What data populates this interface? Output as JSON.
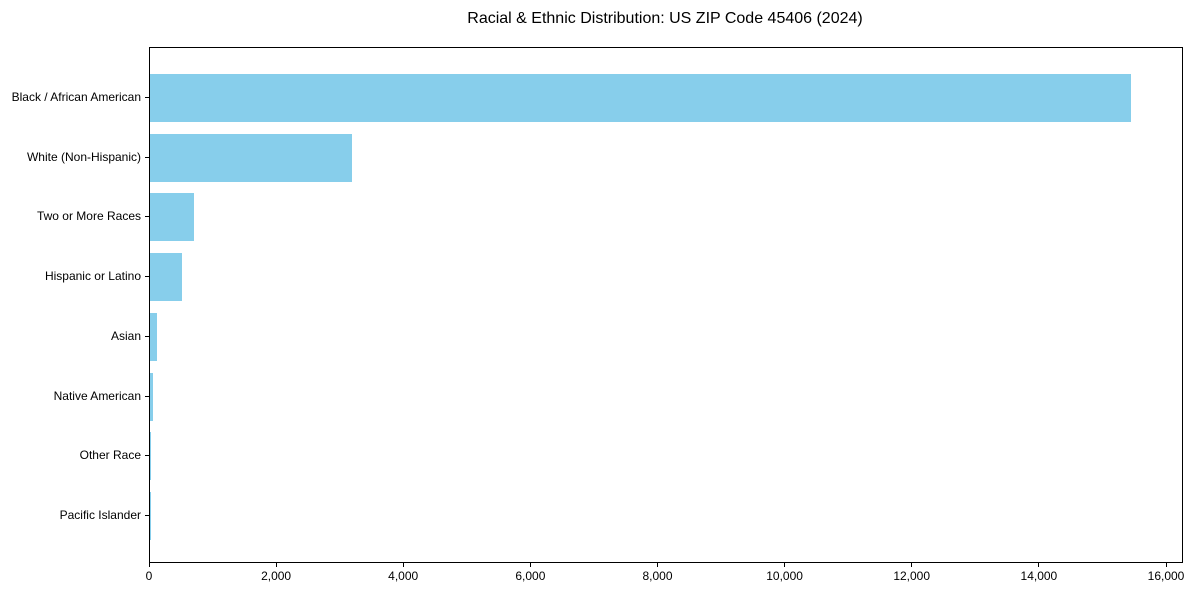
{
  "title": "Racial & Ethnic Distribution: US ZIP Code 45406 (2024)",
  "colors": {
    "bar": "#87CEEB",
    "axis": "#000000",
    "text": "#000000",
    "background": "#FFFFFF"
  },
  "chart_data": {
    "type": "bar",
    "orientation": "horizontal",
    "title": "Racial & Ethnic Distribution: US ZIP Code 45406 (2024)",
    "categories": [
      "Black / African American",
      "White (Non-Hispanic)",
      "Two or More Races",
      "Hispanic or Latino",
      "Asian",
      "Native American",
      "Other Race",
      "Pacific Islander"
    ],
    "values": [
      15430,
      3175,
      695,
      500,
      115,
      47,
      8,
      3
    ],
    "xlabel": "",
    "ylabel": "",
    "xlim": [
      0,
      16236
    ],
    "xticks": [
      0,
      2000,
      4000,
      6000,
      8000,
      10000,
      12000,
      14000,
      16000
    ],
    "xtick_labels": [
      "0",
      "2,000",
      "4,000",
      "6,000",
      "8,000",
      "10,000",
      "12,000",
      "14,000",
      "16,000"
    ],
    "grid": false,
    "legend": false,
    "bar_color": "#87CEEB",
    "frame": "full-box"
  }
}
